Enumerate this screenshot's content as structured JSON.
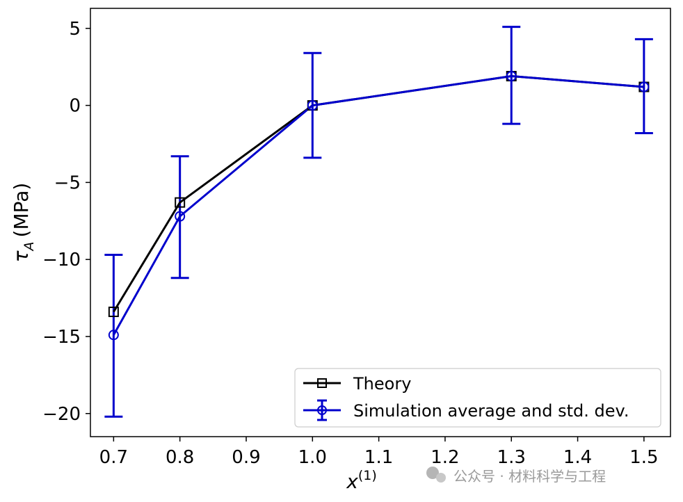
{
  "chart_data": {
    "type": "line",
    "title": "",
    "xlabel": "x",
    "xlabel_superscript": "(1)",
    "ylabel_symbol": "τ",
    "ylabel_subscript": "A",
    "ylabel_unit": "(MPa)",
    "xlim": [
      0.665,
      1.54
    ],
    "ylim": [
      -21.5,
      6.3
    ],
    "x_ticks": [
      0.7,
      0.8,
      0.9,
      1.0,
      1.1,
      1.2,
      1.3,
      1.4,
      1.5
    ],
    "x_tick_labels": [
      "0.7",
      "0.8",
      "0.9",
      "1.0",
      "1.1",
      "1.2",
      "1.3",
      "1.4",
      "1.5"
    ],
    "y_ticks": [
      5,
      0,
      -5,
      -10,
      -15,
      -20
    ],
    "y_tick_labels": [
      "5",
      "0",
      "−5",
      "−10",
      "−15",
      "−20"
    ],
    "grid": false,
    "legend_position": "bottom-right",
    "series": [
      {
        "name": "Theory",
        "color": "#000000",
        "marker": "square",
        "x": [
          0.7,
          0.8,
          1.0,
          1.3,
          1.5
        ],
        "values": [
          -13.4,
          -6.3,
          0.0,
          1.9,
          1.2
        ]
      },
      {
        "name": "Simulation average and std. dev.",
        "color": "#0000cc",
        "marker": "circle",
        "x": [
          0.7,
          0.8,
          1.0,
          1.3,
          1.5
        ],
        "values": [
          -14.9,
          -7.2,
          0.0,
          1.9,
          1.2
        ],
        "err_low": [
          -20.2,
          -11.2,
          -3.4,
          -1.2,
          -1.8
        ],
        "err_high": [
          -9.7,
          -3.3,
          3.4,
          5.1,
          4.3
        ]
      }
    ]
  },
  "watermark": {
    "text": "公众号 · 材料科学与工程"
  }
}
